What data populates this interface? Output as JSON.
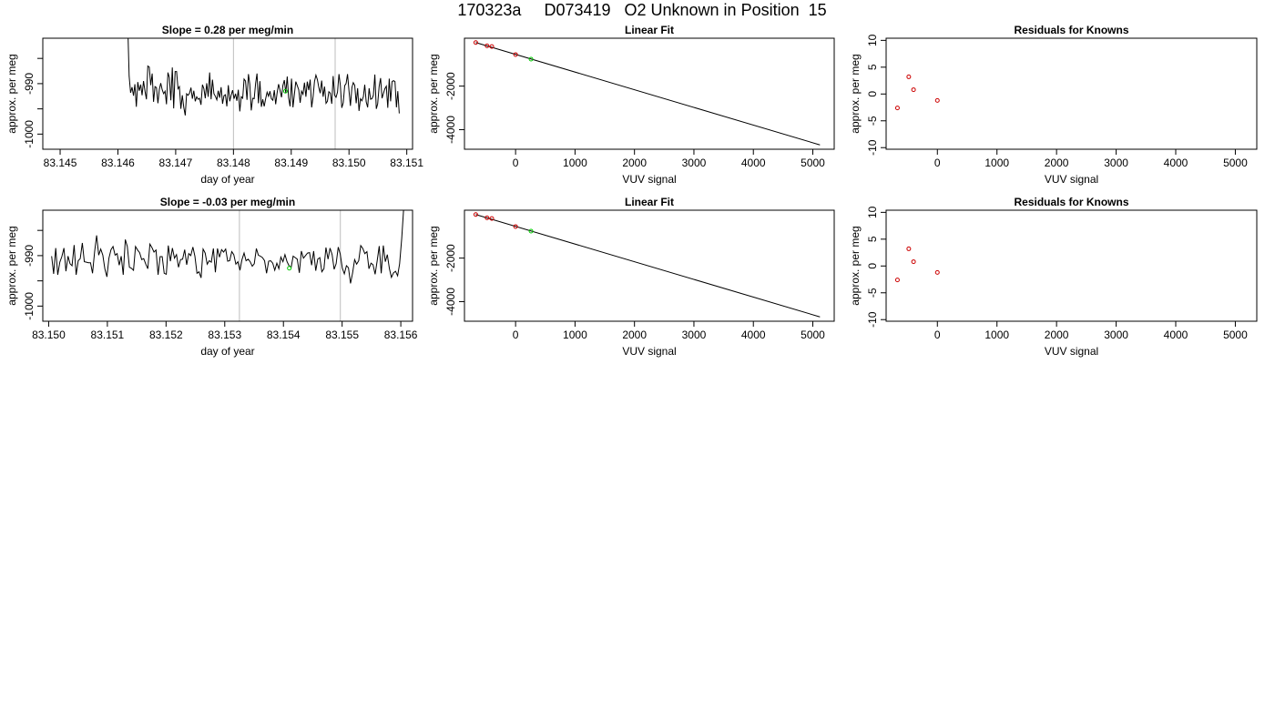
{
  "page": {
    "title": "170323a     D073419   O2 Unknown in Position  15"
  },
  "colors": {
    "trace": "#000000",
    "vline": "#bdbdbd",
    "known": "#cc0000",
    "unknown": "#00cc00",
    "frame": "#000000"
  },
  "chart_data": [
    {
      "type": "line",
      "title": "Slope =  0.28  per meg/min",
      "xlabel": "day of year",
      "ylabel": "approx. per meg",
      "xlim": [
        83.1447,
        83.1511
      ],
      "ylim": [
        -1003,
        -981
      ],
      "xticks": [
        "83.145",
        "83.146",
        "83.147",
        "83.148",
        "83.149",
        "83.150",
        "83.151"
      ],
      "yticks": [
        "-1000",
        "-990"
      ],
      "vlines": [
        83.148,
        83.14976
      ],
      "highlight_point": {
        "x": 83.1489,
        "y": -991.5
      },
      "series": [
        {
          "x0": 83.14617,
          "x1": 83.15087,
          "y": [
            -978.5,
            -988.5,
            -991.8,
            -990.7,
            -992.4,
            -990.1,
            -994.6,
            -989.7,
            -991.4,
            -990.2,
            -992.3,
            -989.5,
            -991.5,
            -993.1,
            -986.5,
            -986.7,
            -990.3,
            -988.0,
            -993.6,
            -990.6,
            -990.8,
            -993.9,
            -991.1,
            -989.9,
            -991.2,
            -992.0,
            -991.5,
            -994.1,
            -987.8,
            -988.8,
            -993.3,
            -986.8,
            -994.9,
            -987.6,
            -987.6,
            -991.0,
            -990.6,
            -995.0,
            -992.3,
            -994.7,
            -996.3,
            -992.0,
            -992.3,
            -991.9,
            -990.8,
            -993.0,
            -991.4,
            -993.5,
            -992.6,
            -993.1,
            -992.9,
            -994.2,
            -990.2,
            -991.0,
            -992.9,
            -989.9,
            -992.6,
            -987.8,
            -993.1,
            -989.2,
            -992.0,
            -992.5,
            -993.2,
            -991.4,
            -992.8,
            -990.7,
            -994.0,
            -992.4,
            -992.2,
            -994.5,
            -990.3,
            -993.5,
            -992.3,
            -991.3,
            -993.0,
            -992.0,
            -993.4,
            -991.2,
            -995.5,
            -992.6,
            -992.9,
            -989.1,
            -989.5,
            -993.2,
            -988.1,
            -990.1,
            -995.3,
            -992.9,
            -993.0,
            -989.9,
            -988.0,
            -993.9,
            -989.5,
            -994.6,
            -993.1,
            -994.5,
            -993.0,
            -991.7,
            -992.5,
            -991.5,
            -993.0,
            -993.3,
            -991.3,
            -994.1,
            -991.8,
            -990.1,
            -991.3,
            -992.7,
            -990.4,
            -989.3,
            -991.9,
            -988.6,
            -992.8,
            -994.5,
            -989.0,
            -994.7,
            -992.2,
            -989.6,
            -990.4,
            -991.2,
            -993.8,
            -991.5,
            -992.1,
            -989.8,
            -992.6,
            -989.6,
            -991.3,
            -989.2,
            -994.7,
            -992.6,
            -989.6,
            -988.3,
            -989.2,
            -990.8,
            -991.9,
            -989.4,
            -992.6,
            -990.6,
            -993.9,
            -993.5,
            -991.6,
            -991.9,
            -994.0,
            -988.5,
            -992.3,
            -992.7,
            -991.7,
            -988.1,
            -990.3,
            -994.8,
            -993.8,
            -990.4,
            -990.0,
            -988.1,
            -991.4,
            -994.4,
            -990.8,
            -989.8,
            -990.3,
            -993.9,
            -990.9,
            -995.4,
            -993.0,
            -993.4,
            -992.6,
            -990.2,
            -993.6,
            -994.7,
            -990.9,
            -993.1,
            -993.0,
            -992.3,
            -988.2,
            -995.0,
            -994.0,
            -990.6,
            -988.9,
            -992.9,
            -991.9,
            -991.0,
            -990.5,
            -994.8,
            -989.0,
            -993.5,
            -989.6,
            -989.4,
            -989.6,
            -994.7,
            -991.5,
            -995.9
          ]
        }
      ]
    },
    {
      "type": "scatter",
      "title": "Linear Fit",
      "xlabel": "VUV signal",
      "ylabel": "approx. per meg",
      "xlim": [
        -860,
        5360
      ],
      "ylim": [
        -4900,
        200
      ],
      "xticks": [
        0,
        1000,
        2000,
        3000,
        4000,
        5000
      ],
      "yticks": [
        -4000,
        -2000
      ],
      "ytick_labels": [
        "-4000",
        "-2000"
      ],
      "fit_line": [
        [
          -670,
          0
        ],
        [
          5120,
          -4700
        ]
      ],
      "knowns": [
        [
          -670,
          0
        ],
        [
          -480,
          -150
        ],
        [
          -400,
          -180
        ],
        [
          0,
          -550
        ]
      ],
      "unknown": [
        [
          260,
          -760
        ]
      ]
    },
    {
      "type": "scatter",
      "title": "Residuals for Knowns",
      "xlabel": "VUV signal",
      "ylabel": "approx. per meg",
      "xlim": [
        -860,
        5360
      ],
      "ylim": [
        -10.3,
        10.4
      ],
      "xticks": [
        0,
        1000,
        2000,
        3000,
        4000,
        5000
      ],
      "yticks": [
        -10,
        -5,
        0,
        5,
        10
      ],
      "ytick_labels": [
        "-10",
        "-5",
        "0",
        "5",
        "10"
      ],
      "points": [
        [
          -670,
          -2.6
        ],
        [
          -480,
          3.2
        ],
        [
          -400,
          0.8
        ],
        [
          0,
          -1.2
        ]
      ]
    },
    {
      "type": "line",
      "title": "Slope =  -0.03  per meg/min",
      "xlabel": "day of year",
      "ylabel": "approx. per meg",
      "xlim": [
        83.1499,
        83.1562
      ],
      "ylim": [
        -1003,
        -981
      ],
      "xticks": [
        "83.150",
        "83.151",
        "83.152",
        "83.153",
        "83.154",
        "83.155",
        "83.156"
      ],
      "yticks": [
        "-1000",
        "-990"
      ],
      "vlines": [
        83.15325,
        83.15497
      ],
      "highlight_point": {
        "x": 83.1541,
        "y": -992.5
      },
      "series": [
        {
          "x0": 83.15005,
          "x1": 83.15605,
          "y": [
            -990.1,
            -993.6,
            -988.5,
            -993.8,
            -991.3,
            -990.2,
            -988.5,
            -993.1,
            -990.1,
            -991.6,
            -992.0,
            -987.9,
            -993.8,
            -991.0,
            -990.6,
            -987.5,
            -991.2,
            -991.3,
            -991.4,
            -991.4,
            -993.5,
            -989.2,
            -986.0,
            -989.9,
            -988.7,
            -989.9,
            -992.6,
            -994.2,
            -990.5,
            -988.8,
            -988.2,
            -989.9,
            -989.6,
            -991.9,
            -990.1,
            -993.8,
            -986.8,
            -988.2,
            -992.3,
            -992.5,
            -992.9,
            -988.2,
            -988.9,
            -989.4,
            -990.8,
            -990.6,
            -991.7,
            -992.6,
            -987.7,
            -988.4,
            -989.3,
            -988.9,
            -993.8,
            -990.2,
            -990.2,
            -993.5,
            -993.7,
            -988.0,
            -991.1,
            -988.5,
            -990.5,
            -989.8,
            -992.3,
            -990.8,
            -990.7,
            -988.8,
            -991.8,
            -989.6,
            -990.0,
            -988.3,
            -990.1,
            -993.5,
            -993.2,
            -994.4,
            -988.7,
            -989.5,
            -991.7,
            -991.0,
            -991.3,
            -988.6,
            -993.3,
            -988.6,
            -990.3,
            -988.8,
            -989.3,
            -988.7,
            -991.1,
            -991.0,
            -989.2,
            -989.8,
            -991.7,
            -991.2,
            -992.9,
            -990.8,
            -989.5,
            -991.0,
            -990.7,
            -991.2,
            -992.1,
            -991.6,
            -988.6,
            -989.9,
            -990.1,
            -990.4,
            -991.0,
            -993.5,
            -991.1,
            -991.0,
            -991.5,
            -992.9,
            -991.5,
            -992.6,
            -990.3,
            -991.2,
            -989.8,
            -991.2,
            -992.0,
            -992.3,
            -990.1,
            -990.4,
            -990.7,
            -993.4,
            -989.1,
            -990.5,
            -990.0,
            -989.5,
            -989.4,
            -991.9,
            -989.1,
            -993.0,
            -990.7,
            -990.4,
            -993.2,
            -992.6,
            -988.4,
            -990.7,
            -988.5,
            -989.8,
            -992.7,
            -991.6,
            -988.3,
            -989.7,
            -992.5,
            -993.6,
            -992.0,
            -992.4,
            -995.5,
            -993.5,
            -990.8,
            -991.7,
            -991.0,
            -988.0,
            -988.6,
            -989.6,
            -989.2,
            -992.6,
            -991.5,
            -991.8,
            -993.7,
            -991.1,
            -988.1,
            -993.5,
            -988.0,
            -991.2,
            -989.8,
            -992.6,
            -994.3,
            -993.4,
            -993.1,
            -994.0,
            -991.6,
            -986.6,
            -980.5
          ]
        }
      ]
    },
    {
      "type": "scatter",
      "title": "Linear Fit",
      "xlabel": "VUV signal",
      "ylabel": "approx. per meg",
      "xlim": [
        -860,
        5360
      ],
      "ylim": [
        -4900,
        200
      ],
      "xticks": [
        0,
        1000,
        2000,
        3000,
        4000,
        5000
      ],
      "yticks": [
        -4000,
        -2000
      ],
      "ytick_labels": [
        "-4000",
        "-2000"
      ],
      "fit_line": [
        [
          -670,
          0
        ],
        [
          5120,
          -4700
        ]
      ],
      "knowns": [
        [
          -670,
          0
        ],
        [
          -480,
          -150
        ],
        [
          -400,
          -180
        ],
        [
          0,
          -550
        ]
      ],
      "unknown": [
        [
          260,
          -760
        ]
      ]
    },
    {
      "type": "scatter",
      "title": "Residuals for Knowns",
      "xlabel": "VUV signal",
      "ylabel": "approx. per meg",
      "xlim": [
        -860,
        5360
      ],
      "ylim": [
        -10.3,
        10.4
      ],
      "xticks": [
        0,
        1000,
        2000,
        3000,
        4000,
        5000
      ],
      "yticks": [
        -10,
        -5,
        0,
        5,
        10
      ],
      "ytick_labels": [
        "-10",
        "-5",
        "0",
        "5",
        "10"
      ],
      "points": [
        [
          -670,
          -2.6
        ],
        [
          -480,
          3.2
        ],
        [
          -400,
          0.8
        ],
        [
          0,
          -1.2
        ]
      ]
    }
  ]
}
